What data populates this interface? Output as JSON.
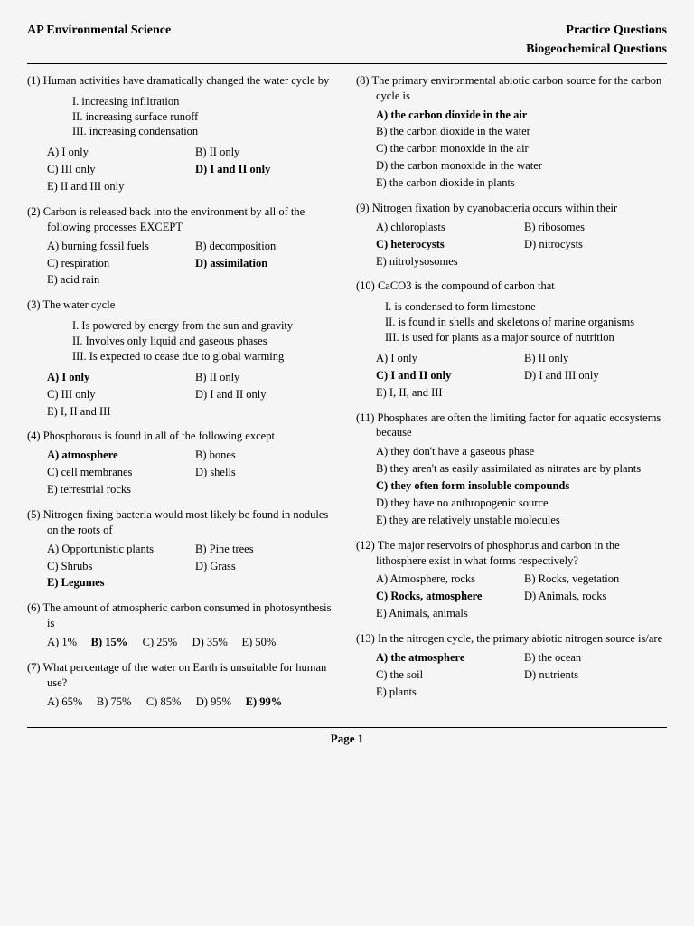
{
  "header_left": "AP Environmental Science",
  "header_right": "Practice Questions",
  "subheader": "Biogeochemical Questions",
  "footer": "Page 1",
  "left": [
    {
      "num": "(1)",
      "text": "Human activities have dramatically changed the water cycle by",
      "stems": [
        "I.   increasing infiltration",
        "II.  increasing surface runoff",
        "III. increasing condensation"
      ],
      "layout": "grid",
      "opts": [
        {
          "t": "A)  I only"
        },
        {
          "t": "B)  II only"
        },
        {
          "t": "C)  III only"
        },
        {
          "t": "D)  I and II only",
          "b": true
        },
        {
          "t": "E)  II and III only"
        }
      ]
    },
    {
      "num": "(2)",
      "text": "Carbon is released back into the environment by all of the following processes EXCEPT",
      "layout": "grid",
      "opts": [
        {
          "t": "A)  burning fossil fuels"
        },
        {
          "t": "B)  decomposition"
        },
        {
          "t": "C)  respiration"
        },
        {
          "t": "D)  assimilation",
          "b": true
        },
        {
          "t": "E)  acid rain"
        }
      ]
    },
    {
      "num": "(3)",
      "text": "The water cycle",
      "stems": [
        "I.   Is powered by energy from the sun and gravity",
        "II.   Involves only liquid and gaseous phases",
        "III.  Is expected to cease due to global warming"
      ],
      "layout": "grid",
      "opts": [
        {
          "t": "A)  I only",
          "b": true
        },
        {
          "t": "B)  II only"
        },
        {
          "t": "C)  III only"
        },
        {
          "t": "D)  I and II only"
        },
        {
          "t": "E)  I, II and III"
        }
      ]
    },
    {
      "num": "(4)",
      "text": "Phosphorous is found in all of the following except",
      "layout": "grid",
      "opts": [
        {
          "t": "A)  atmosphere",
          "b": true
        },
        {
          "t": "B)  bones"
        },
        {
          "t": "C)  cell membranes"
        },
        {
          "t": "D)  shells"
        },
        {
          "t": "E)  terrestrial rocks"
        }
      ]
    },
    {
      "num": "(5)",
      "text": "Nitrogen fixing bacteria would most likely be found in nodules on the roots of",
      "layout": "grid",
      "opts": [
        {
          "t": "A)  Opportunistic plants"
        },
        {
          "t": "B)  Pine trees"
        },
        {
          "t": "C)  Shrubs"
        },
        {
          "t": "D)  Grass"
        },
        {
          "t": "E)  Legumes",
          "b": true
        }
      ]
    },
    {
      "num": "(6)",
      "text": "The amount of atmospheric carbon consumed in photosynthesis is",
      "layout": "row",
      "opts": [
        {
          "t": "A)  1%"
        },
        {
          "t": "B)  15%",
          "b": true
        },
        {
          "t": "C)  25%"
        },
        {
          "t": "D)  35%"
        },
        {
          "t": "E)  50%"
        }
      ]
    },
    {
      "num": "(7)",
      "text": " What percentage of the water on Earth is unsuitable for human use?",
      "layout": "row",
      "opts": [
        {
          "t": "A)  65%"
        },
        {
          "t": "B)  75%"
        },
        {
          "t": "C)  85%"
        },
        {
          "t": "D)  95%"
        },
        {
          "t": "E)  99%",
          "b": true
        }
      ]
    }
  ],
  "right": [
    {
      "num": "(8)",
      "text": "The primary environmental abiotic carbon source for the carbon cycle is",
      "layout": "col",
      "opts": [
        {
          "t": "A)  the carbon dioxide in the air",
          "b": true
        },
        {
          "t": "B)  the carbon dioxide in the water"
        },
        {
          "t": "C)  the carbon monoxide in the air"
        },
        {
          "t": "D)  the carbon monoxide in the water"
        },
        {
          "t": "E)  the carbon dioxide in plants"
        }
      ]
    },
    {
      "num": "(9)",
      "text": "Nitrogen fixation by cyanobacteria occurs within their",
      "layout": "grid",
      "opts": [
        {
          "t": "A)  chloroplasts"
        },
        {
          "t": "B)  ribosomes"
        },
        {
          "t": "C)  heterocysts",
          "b": true
        },
        {
          "t": "D)  nitrocysts"
        },
        {
          "t": "E)  nitrolysosomes"
        }
      ]
    },
    {
      "num": "(10)",
      "text": "CaCO3 is the compound of carbon that",
      "stems": [
        "I.  is condensed to form limestone",
        "II.  is found in shells and skeletons of marine organisms",
        "III.  is used for plants as a major source of nutrition"
      ],
      "stems_outdent": true,
      "layout": "grid",
      "opts": [
        {
          "t": "A)  I only"
        },
        {
          "t": "B)  II only"
        },
        {
          "t": "C)  I and II only",
          "b": true
        },
        {
          "t": "D)  I and III only"
        },
        {
          "t": "E)  I, II, and III"
        }
      ]
    },
    {
      "num": "(11)",
      "text": "Phosphates are often the limiting factor for aquatic ecosystems because",
      "layout": "col",
      "opts": [
        {
          "t": "A)  they don't have a gaseous phase"
        },
        {
          "t": "B)  they aren't as easily assimilated as nitrates are by plants"
        },
        {
          "t": "C)  they often form insoluble compounds",
          "b": true
        },
        {
          "t": "D)  they have no anthropogenic source"
        },
        {
          "t": "E)  they are relatively unstable molecules"
        }
      ]
    },
    {
      "num": "(12)",
      "text": "The major reservoirs of phosphorus and carbon in the lithosphere exist in what forms respectively?",
      "layout": "grid",
      "opts": [
        {
          "t": "A)  Atmosphere, rocks"
        },
        {
          "t": "B)  Rocks, vegetation"
        },
        {
          "t": "C)  Rocks, atmosphere",
          "b": true
        },
        {
          "t": "D)  Animals, rocks"
        },
        {
          "t": "E)  Animals, animals"
        }
      ]
    },
    {
      "num": "(13)",
      "text": "In the nitrogen cycle, the primary abiotic nitrogen source is/are",
      "layout": "grid",
      "opts": [
        {
          "t": "A)  the atmosphere",
          "b": true
        },
        {
          "t": "B)  the ocean"
        },
        {
          "t": "C)  the soil"
        },
        {
          "t": "D)  nutrients"
        },
        {
          "t": "E)  plants"
        }
      ]
    }
  ]
}
